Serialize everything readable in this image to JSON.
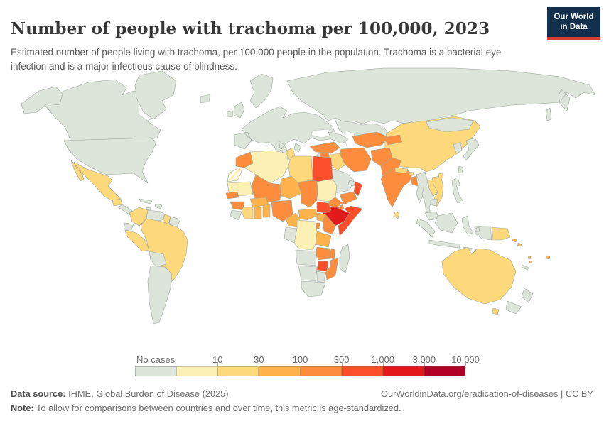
{
  "header": {
    "title": "Number of people with trachoma per 100,000, 2023",
    "subtitle": "Estimated number of people living with trachoma, per 100,000 people in the population. Trachoma is a bacterial eye infection and is a major infectious cause of blindness.",
    "logo": {
      "line1": "Our World",
      "line2": "in Data",
      "bg": "#12304e",
      "accent": "#d73c32"
    }
  },
  "legend": {
    "no_cases_label": "No cases",
    "tick_labels": [
      "10",
      "30",
      "100",
      "300",
      "1,000",
      "3,000",
      "10,000"
    ],
    "colors": {
      "no_cases": "#dde4da",
      "bins": [
        "#fcf0b5",
        "#fed97c",
        "#feb24c",
        "#fd8d3c",
        "#fc4e2a",
        "#e31a1c",
        "#b10026"
      ]
    }
  },
  "footer": {
    "datasource_label": "Data source:",
    "datasource": " IHME, Global Burden of Disease (2025)",
    "url": "OurWorldinData.org/eradication-of-diseases | CC BY",
    "note_label": "Note:",
    "note": " To allow for comparisons between countries and over time, this metric is age-standardized."
  },
  "chart_data": {
    "type": "choropleth_map",
    "title": "Number of people with trachoma per 100,000",
    "year": 2023,
    "unit": "per 100,000 people",
    "bin_edges": [
      10,
      30,
      100,
      300,
      1000,
      3000,
      10000
    ],
    "bin_labels": [
      "No cases",
      "<10",
      "10–30",
      "30–100",
      "100–300",
      "300–1,000",
      "1,000–3,000",
      "3,000–10,000"
    ],
    "countries": {
      "United States": "No cases",
      "Canada": "No cases",
      "Alaska": "No cases",
      "Greenland": "No cases",
      "Iceland": "No cases",
      "United Kingdom": "No cases",
      "Ireland": "No cases",
      "Europe": "No cases",
      "Scandinavia": "No cases",
      "Russia": "No cases",
      "Kazakhstan": "No cases",
      "Mongolia": "No cases",
      "Caucasus": "No cases",
      "Japan": "No cases",
      "South Korea": "No cases",
      "Taiwan": "No cases",
      "Philippines": "No cases",
      "Indonesia": "No cases",
      "Malaysia": "No cases",
      "Thailand": "No cases",
      "Cambodia": "No cases",
      "Myanmar": "No cases",
      "Saudi Arabia": "No cases",
      "Jordan & Israel": "No cases",
      "UAE & Qatar": "No cases",
      "Cuba": "No cases",
      "Hispaniola": "No cases",
      "Jamaica": "No cases",
      "Central America": "No cases",
      "Venezuela": "No cases",
      "Suriname & French Guiana": "No cases",
      "Ecuador": "No cases",
      "Bolivia": "No cases",
      "Argentina & Chile": "No cases",
      "Sierra Leone & Liberia": "No cases",
      "Gabon & Congo": "No cases",
      "Angola": "No cases",
      "Namibia": "No cases",
      "Botswana": "No cases",
      "South Africa": "No cases",
      "Madagascar": "No cases",
      "New Zealand": "No cases",
      "New Caledonia": "No cases",
      "Algeria": "<10",
      "Sudan": "<10",
      "DR Congo": "<10",
      "Mauritania": "<10",
      "Western Sahara": "<10",
      "Mexico": "10–30",
      "Guatemala": "10–30",
      "Colombia": "10–30",
      "Guyana": "10–30",
      "Peru": "10–30",
      "Brazil": "10–30",
      "Tunisia": "10–30",
      "Libya": "10–30",
      "Cote d'Ivoire": "10–30",
      "Iraq": "10–30",
      "China": "10–30",
      "Hainan": "10–30",
      "Laos": "10–30",
      "Vietnam": "10–30",
      "Nepal": "10–30",
      "Bhutan": "10–30",
      "Sri Lanka": "10–30",
      "Papua New Guinea": "10–30",
      "Australia": "10–30",
      "Tasmania": "10–30",
      "Niger": "30–100",
      "Burkina Faso": "30–100",
      "Ghana": "30–100",
      "Togo & Benin": "30–100",
      "Cameroon": "30–100",
      "Central African Republic": "30–100",
      "Uganda": "30–100",
      "Tanzania": "30–100",
      "Solomon Islands": "30–100",
      "Vanuatu": "30–100",
      "Fiji": "30–100",
      "Morocco": "100–300",
      "Mali": "100–300",
      "Chad": "100–300",
      "Senegal": "100–300",
      "Guinea": "100–300",
      "Nigeria": "100–300",
      "Eritrea": "100–300",
      "Djibouti": "100–300",
      "Kenya": "100–300",
      "Rwanda & Burundi": "100–300",
      "Zambia": "100–300",
      "Malawi": "100–300",
      "Mozambique": "100–300",
      "Turkey": "100–300",
      "Syria": "100–300",
      "Iran": "100–300",
      "Turkmenistan & Uzbekistan": "100–300",
      "Tajikistan & Kyrgyzstan": "100–300",
      "Afghanistan": "100–300",
      "Pakistan": "100–300",
      "India": "100–300",
      "Bangladesh": "100–300",
      "Yemen": "100–300",
      "Egypt": "300–1,000",
      "Somalia": "300–1,000",
      "South Sudan": "300–1,000",
      "Oman": "300–1,000",
      "Zimbabwe": "300–1,000",
      "Ethiopia": "1,000–3,000"
    }
  }
}
